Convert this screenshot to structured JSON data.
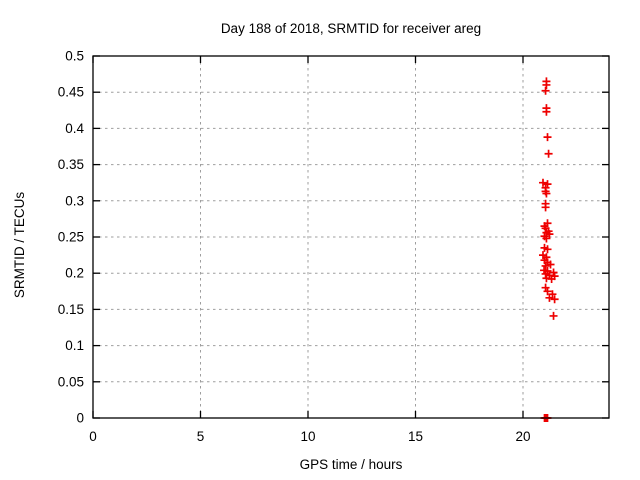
{
  "window": {
    "background": "#ffffff"
  },
  "chart_data": {
    "type": "scatter",
    "title": "Day 188 of 2018, SRMTID for receiver areg",
    "xlabel": "GPS time / hours",
    "ylabel": "SRMTID / TECUs",
    "xlim": [
      0,
      24
    ],
    "ylim": [
      0,
      0.5
    ],
    "grid": true,
    "legend_position": "none",
    "axis_color": "#000000",
    "grid_color": "#9e9e9e",
    "marker": {
      "shape": "plus",
      "color": "#ee0000",
      "size": 4,
      "stroke_width": 1.7
    },
    "xticks": [
      {
        "v": 0,
        "label": "0"
      },
      {
        "v": 5,
        "label": "5"
      },
      {
        "v": 10,
        "label": "10"
      },
      {
        "v": 15,
        "label": "15"
      },
      {
        "v": 20,
        "label": "20"
      }
    ],
    "yticks": [
      {
        "v": 0.0,
        "label": "0"
      },
      {
        "v": 0.05,
        "label": "0.05"
      },
      {
        "v": 0.1,
        "label": "0.1"
      },
      {
        "v": 0.15,
        "label": "0.15"
      },
      {
        "v": 0.2,
        "label": "0.2"
      },
      {
        "v": 0.25,
        "label": "0.25"
      },
      {
        "v": 0.3,
        "label": "0.3"
      },
      {
        "v": 0.35,
        "label": "0.35"
      },
      {
        "v": 0.4,
        "label": "0.4"
      },
      {
        "v": 0.45,
        "label": "0.45"
      },
      {
        "v": 0.5,
        "label": "0.5"
      }
    ],
    "series": [
      {
        "name": "SRMTID",
        "points": [
          [
            21.09,
            0.465
          ],
          [
            21.09,
            0.46
          ],
          [
            21.05,
            0.452
          ],
          [
            21.09,
            0.428
          ],
          [
            21.09,
            0.423
          ],
          [
            21.14,
            0.388
          ],
          [
            21.19,
            0.365
          ],
          [
            20.93,
            0.325
          ],
          [
            21.14,
            0.323
          ],
          [
            21.05,
            0.318
          ],
          [
            21.05,
            0.313
          ],
          [
            21.09,
            0.31
          ],
          [
            21.05,
            0.296
          ],
          [
            21.05,
            0.291
          ],
          [
            21.14,
            0.269
          ],
          [
            21.0,
            0.265
          ],
          [
            21.05,
            0.262
          ],
          [
            21.19,
            0.258
          ],
          [
            21.09,
            0.256
          ],
          [
            21.23,
            0.254
          ],
          [
            21.0,
            0.251
          ],
          [
            21.09,
            0.248
          ],
          [
            21.0,
            0.235
          ],
          [
            21.14,
            0.233
          ],
          [
            20.93,
            0.225
          ],
          [
            21.09,
            0.222
          ],
          [
            21.0,
            0.218
          ],
          [
            21.14,
            0.215
          ],
          [
            21.28,
            0.212
          ],
          [
            21.05,
            0.21
          ],
          [
            20.98,
            0.204
          ],
          [
            21.14,
            0.203
          ],
          [
            21.42,
            0.201
          ],
          [
            21.05,
            0.199
          ],
          [
            21.23,
            0.197
          ],
          [
            21.47,
            0.196
          ],
          [
            21.09,
            0.193
          ],
          [
            21.33,
            0.192
          ],
          [
            21.05,
            0.18
          ],
          [
            21.14,
            0.175
          ],
          [
            21.37,
            0.171
          ],
          [
            21.23,
            0.166
          ],
          [
            21.47,
            0.164
          ],
          [
            21.42,
            0.141
          ],
          [
            21.0,
            0.0
          ],
          [
            21.05,
            0.0
          ],
          [
            21.09,
            0.0
          ],
          [
            21.14,
            0.0
          ]
        ]
      }
    ]
  }
}
